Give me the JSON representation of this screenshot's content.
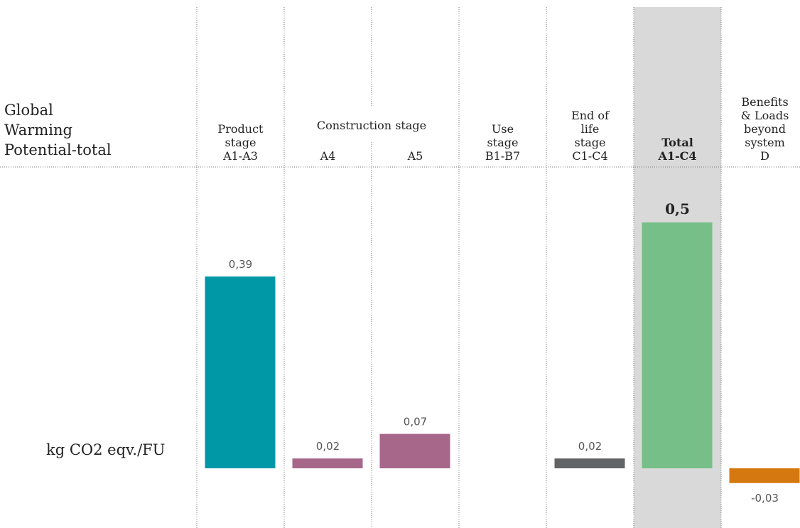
{
  "chart_data": {
    "type": "bar",
    "header_label": [
      "Global",
      "Warming",
      "Potential-total"
    ],
    "unit_label": "kg CO2 eqv./FU",
    "group_label": "Construction stage",
    "categories": [
      [
        "Product",
        "stage",
        "A1-A3"
      ],
      [
        "A4"
      ],
      [
        "A5"
      ],
      [
        "Use",
        "stage",
        "B1-B7"
      ],
      [
        "End of",
        "life",
        "stage",
        "C1-C4"
      ],
      [
        "Total",
        "A1-C4"
      ],
      [
        "Benefits",
        "& Loads",
        "beyond",
        "system",
        "D"
      ]
    ],
    "values": [
      0.39,
      0.02,
      0.07,
      null,
      0.02,
      0.5,
      -0.03
    ],
    "value_labels": [
      "0,39",
      "0,02",
      "0,07",
      null,
      "0,02",
      "0,5",
      "-0,03"
    ],
    "colors": [
      "#0097a7",
      "#a6678a",
      "#a6678a",
      null,
      "#636466",
      "#77bf88",
      "#d4780f"
    ],
    "highlight": 5
  }
}
